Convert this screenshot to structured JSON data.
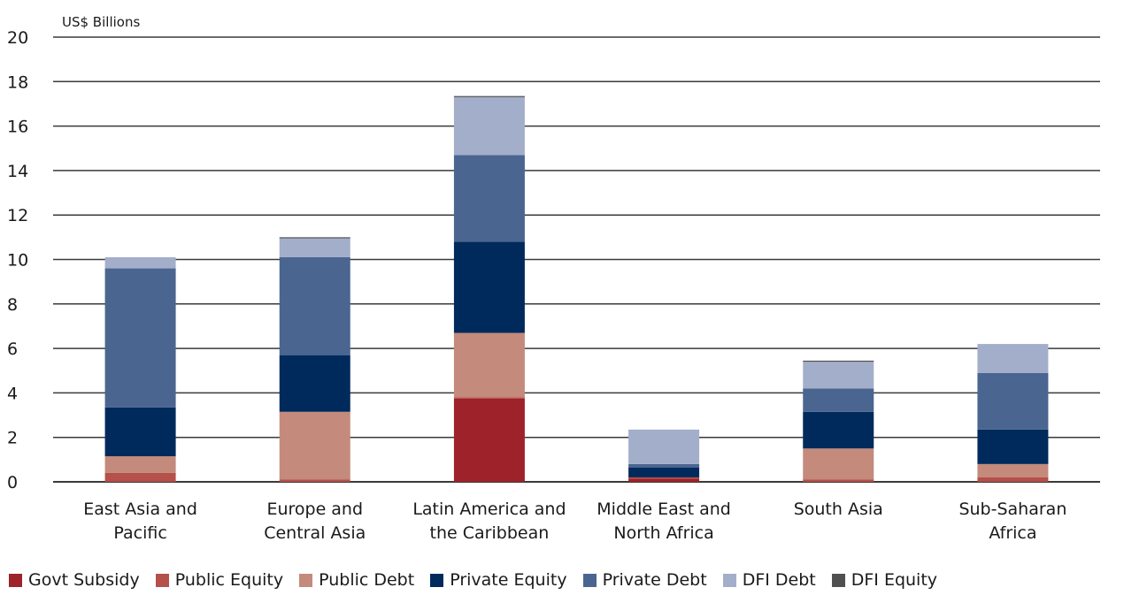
{
  "chart_data": {
    "type": "bar",
    "stacked": true,
    "ylabel": "US$ Billions",
    "ylim": [
      0,
      20
    ],
    "yticks": [
      "0",
      "2",
      "4",
      "6",
      "8",
      "10",
      "12",
      "14",
      "16",
      "18",
      "20"
    ],
    "grid": true,
    "legend_position": "bottom",
    "categories": [
      [
        "East Asia and",
        "Pacific"
      ],
      [
        "Europe and",
        "Central Asia"
      ],
      [
        "Latin America and",
        "the Caribbean"
      ],
      [
        "Middle East and",
        "North Africa"
      ],
      [
        "South Asia"
      ],
      [
        "Sub-Saharan",
        "Africa"
      ]
    ],
    "series": [
      {
        "name": "Govt Subsidy",
        "color": "#9e2229",
        "values": [
          0.0,
          0.0,
          3.75,
          0.15,
          0.0,
          0.0
        ]
      },
      {
        "name": "Public Equity",
        "color": "#b5504a",
        "values": [
          0.4,
          0.1,
          0.05,
          0.05,
          0.1,
          0.2
        ]
      },
      {
        "name": "Public Debt",
        "color": "#c48a7c",
        "values": [
          0.75,
          3.05,
          2.9,
          0.0,
          1.4,
          0.6
        ]
      },
      {
        "name": "Private Equity",
        "color": "#002a5c",
        "values": [
          2.2,
          2.55,
          4.1,
          0.45,
          1.65,
          1.55
        ]
      },
      {
        "name": "Private Debt",
        "color": "#4a6590",
        "values": [
          6.25,
          4.4,
          3.9,
          0.15,
          1.05,
          2.55
        ]
      },
      {
        "name": "DFI Debt",
        "color": "#a3aecb",
        "values": [
          0.5,
          0.85,
          2.6,
          1.55,
          1.2,
          1.3
        ]
      },
      {
        "name": "DFI Equity",
        "color": "#505050",
        "values": [
          0.0,
          0.05,
          0.05,
          0.0,
          0.05,
          0.0
        ]
      }
    ]
  }
}
